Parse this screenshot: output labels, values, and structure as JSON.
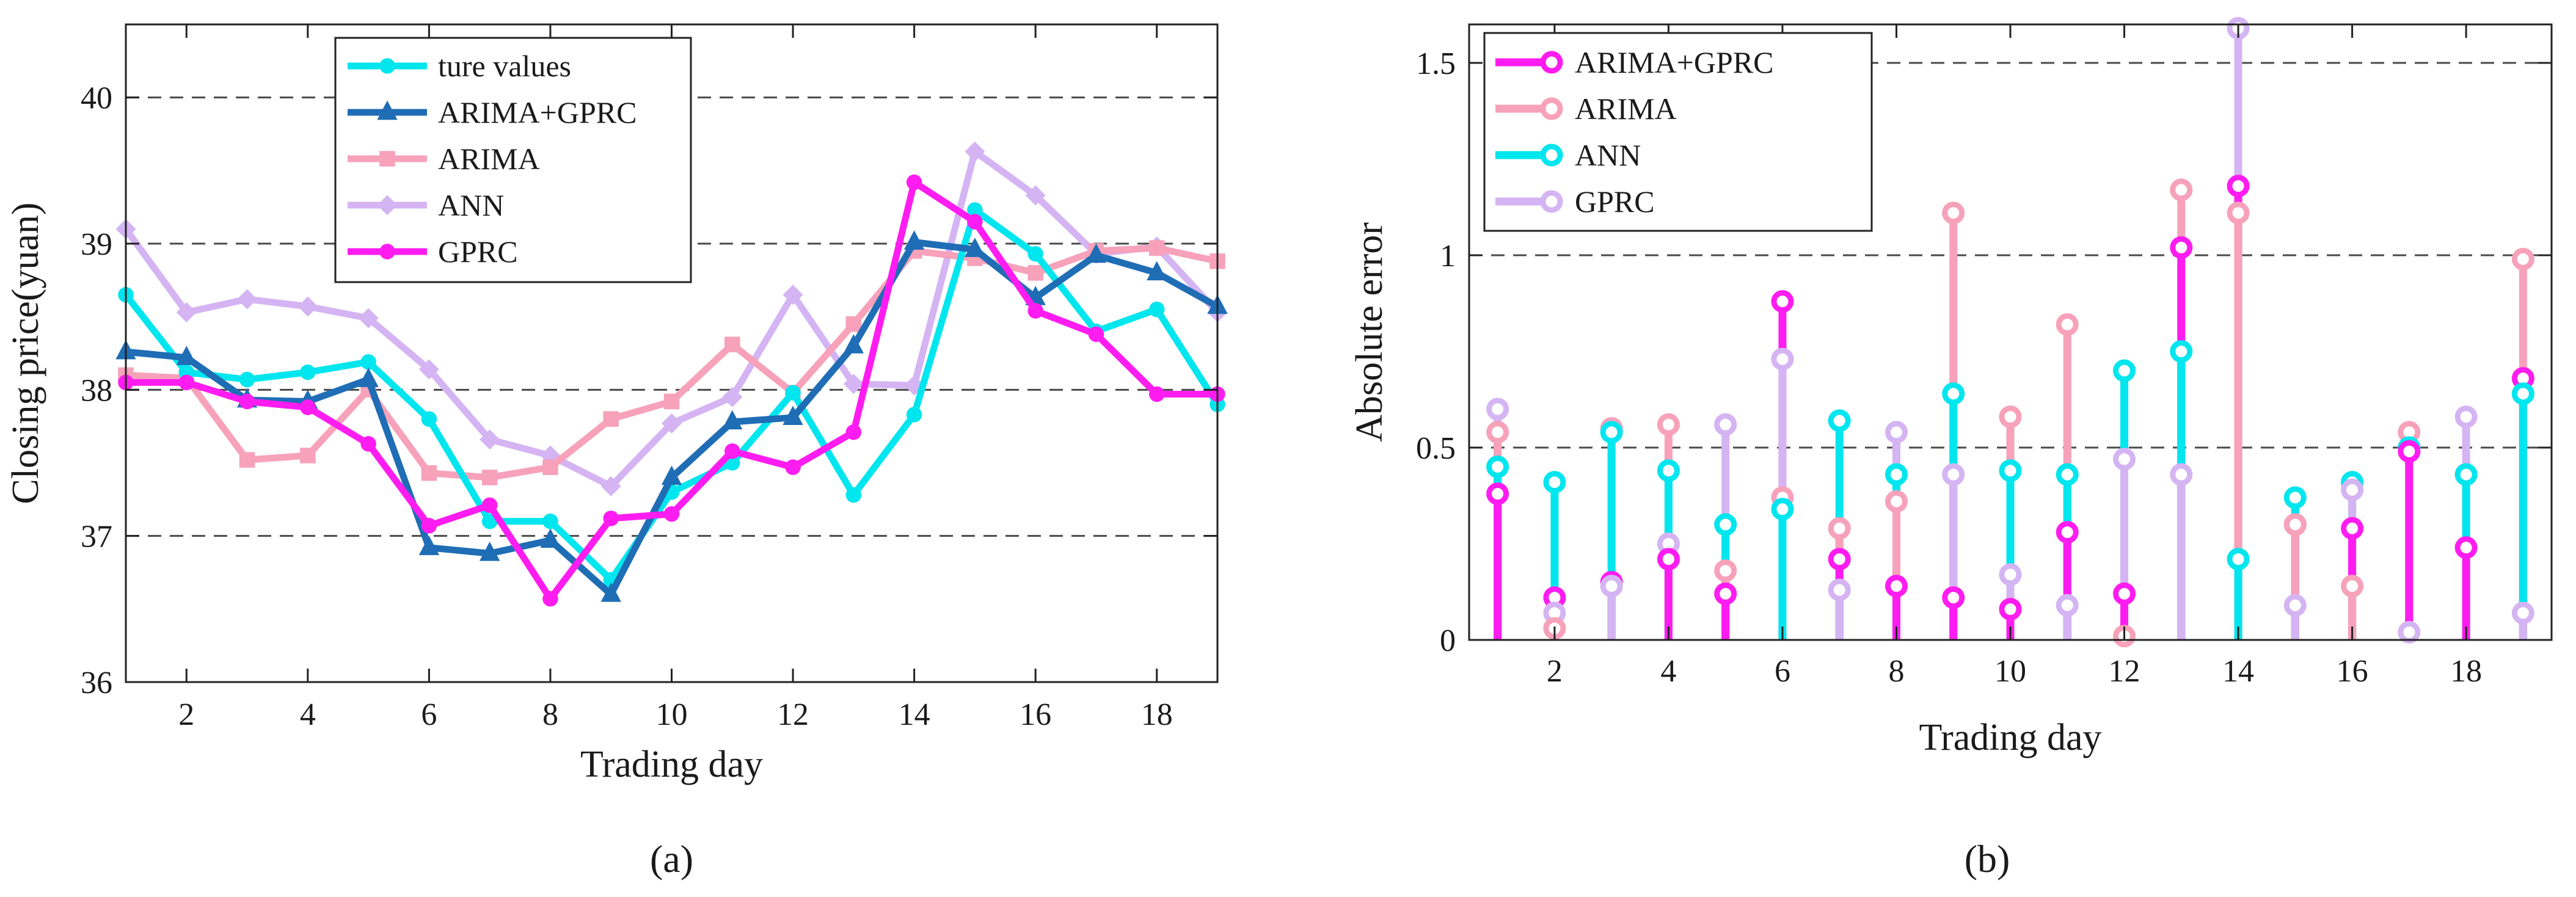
{
  "chart_data": [
    {
      "type": "line",
      "panel_label": "(a)",
      "xlabel": "Trading day",
      "ylabel": "Closing price(yuan)",
      "xlim": [
        1,
        19
      ],
      "ylim": [
        36,
        40.5
      ],
      "xticks": [
        2,
        4,
        6,
        8,
        10,
        12,
        14,
        16,
        18
      ],
      "yticks": [
        36,
        37,
        38,
        39,
        40
      ],
      "grid": "horizontal dashed",
      "legend_position": "top-center",
      "x": [
        1,
        2,
        3,
        4,
        5,
        6,
        7,
        8,
        9,
        10,
        11,
        12,
        13,
        14,
        15,
        16,
        17,
        18,
        19
      ],
      "series": [
        {
          "name": "ture values",
          "color": "#00e6ee",
          "marker": "circle",
          "values": [
            38.65,
            38.12,
            38.07,
            38.12,
            38.19,
            37.8,
            37.1,
            37.1,
            36.7,
            37.3,
            37.5,
            37.98,
            37.28,
            37.83,
            39.23,
            38.93,
            38.4,
            38.55,
            37.9
          ]
        },
        {
          "name": "ARIMA+GPRC",
          "color": "#1f6db5",
          "marker": "triangle",
          "values": [
            38.26,
            38.22,
            37.93,
            37.92,
            38.07,
            36.92,
            36.88,
            36.97,
            36.6,
            37.4,
            37.78,
            37.81,
            38.3,
            39.01,
            38.96,
            38.63,
            38.92,
            38.8,
            38.57
          ]
        },
        {
          "name": "ARIMA",
          "color": "#f7a1ba",
          "marker": "square",
          "values": [
            38.1,
            38.08,
            37.52,
            37.55,
            38.0,
            37.43,
            37.4,
            37.47,
            37.8,
            37.92,
            38.31,
            37.98,
            38.45,
            38.95,
            38.9,
            38.8,
            38.95,
            38.97,
            38.88
          ]
        },
        {
          "name": "ANN",
          "color": "#d4b4f2",
          "marker": "diamond",
          "values": [
            39.1,
            38.53,
            38.62,
            38.57,
            38.49,
            38.14,
            37.66,
            37.55,
            37.34,
            37.77,
            37.95,
            38.65,
            38.04,
            38.03,
            39.63,
            39.33,
            38.93,
            38.98,
            38.53
          ]
        },
        {
          "name": "GPRC",
          "color": "#ff1cf0",
          "marker": "circle",
          "values": [
            38.05,
            38.05,
            37.92,
            37.88,
            37.63,
            37.07,
            37.21,
            36.57,
            37.12,
            37.15,
            37.58,
            37.47,
            37.71,
            39.42,
            39.15,
            38.54,
            38.38,
            37.97,
            37.97
          ]
        }
      ]
    },
    {
      "type": "stem",
      "panel_label": "(b)",
      "xlabel": "Trading day",
      "ylabel": "Absolute error",
      "xlim": [
        0.5,
        19.5
      ],
      "ylim": [
        0,
        1.6
      ],
      "xticks": [
        2,
        4,
        6,
        8,
        10,
        12,
        14,
        16,
        18
      ],
      "ytick_values": [
        0,
        0.5,
        1,
        1.5
      ],
      "ytick_labels": [
        "0",
        "0.5",
        "1",
        "1.5"
      ],
      "grid": "horizontal dashed",
      "legend_position": "top-left",
      "x": [
        1,
        2,
        3,
        4,
        5,
        6,
        7,
        8,
        9,
        10,
        11,
        12,
        13,
        14,
        15,
        16,
        17,
        18,
        19
      ],
      "series": [
        {
          "name": "ARIMA+GPRC",
          "color": "#ff1cf0",
          "values": [
            0.38,
            0.11,
            0.15,
            0.21,
            0.12,
            0.88,
            0.21,
            0.14,
            0.11,
            0.08,
            0.28,
            0.12,
            1.02,
            1.18,
            0.3,
            0.29,
            0.49,
            0.24,
            0.68
          ]
        },
        {
          "name": "ARIMA",
          "color": "#f7a1ba",
          "values": [
            0.54,
            0.03,
            0.55,
            0.56,
            0.18,
            0.37,
            0.29,
            0.36,
            1.11,
            0.58,
            0.82,
            0.01,
            1.17,
            1.11,
            0.3,
            0.14,
            0.54,
            0.43,
            0.99
          ]
        },
        {
          "name": "ANN",
          "color": "#00e6ee",
          "values": [
            0.45,
            0.41,
            0.54,
            0.44,
            0.3,
            0.34,
            0.57,
            0.43,
            0.64,
            0.44,
            0.43,
            0.7,
            0.75,
            0.21,
            0.37,
            0.41,
            0.5,
            0.43,
            0.64
          ]
        },
        {
          "name": "GPRC",
          "color": "#d4b4f2",
          "values": [
            0.6,
            0.07,
            0.14,
            0.25,
            0.56,
            0.73,
            0.13,
            0.54,
            0.43,
            0.17,
            0.09,
            0.47,
            0.43,
            1.59,
            0.09,
            0.39,
            0.02,
            0.58,
            0.07
          ]
        }
      ]
    }
  ]
}
